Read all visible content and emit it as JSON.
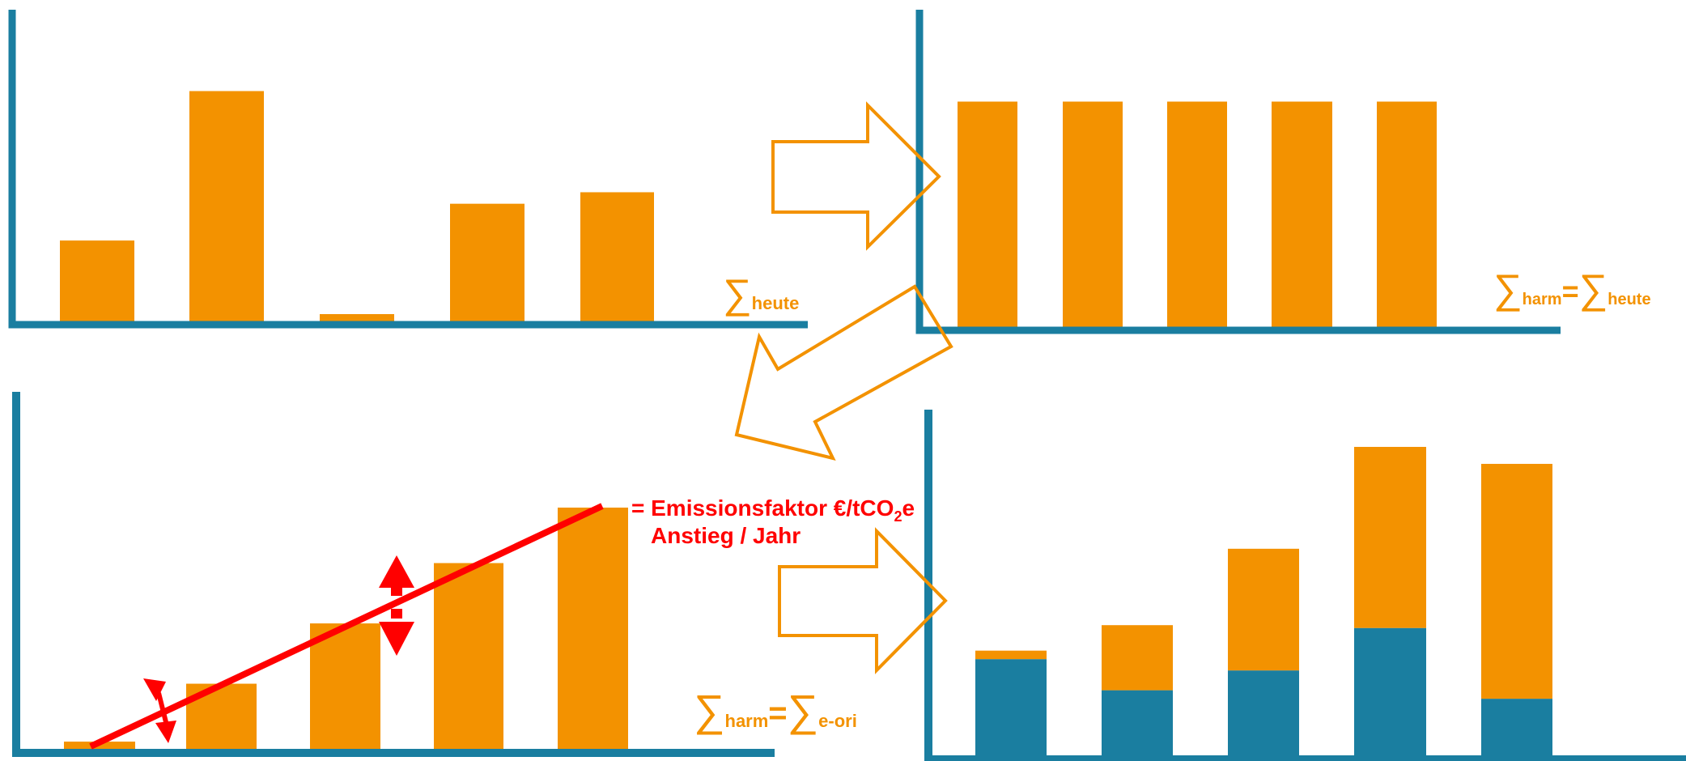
{
  "colors": {
    "axis": "#1a7ea0",
    "bar": "#f39200",
    "base": "#1a7ea0",
    "accent": "#ff0000",
    "arrow": "#f39200"
  },
  "chart_data": [
    {
      "type": "bar",
      "panel": "top-left",
      "values": [
        35,
        100,
        3,
        51,
        56
      ],
      "annotation": {
        "sigma": "∑",
        "sub": "heute"
      }
    },
    {
      "type": "bar",
      "panel": "top-right",
      "values": [
        49,
        49,
        49,
        49,
        49
      ],
      "annotation": {
        "sigma_left": "∑",
        "sub_left": "harm",
        "equals": "=",
        "sigma_right": "∑",
        "sub_right": "heute"
      }
    },
    {
      "type": "bar",
      "panel": "bottom-left",
      "values": [
        3,
        27,
        52,
        77,
        100
      ],
      "annotation": {
        "sigma_left": "∑",
        "sub_left": "harm",
        "equals": "=",
        "sigma_right": "∑",
        "sub_right": "e-ori"
      },
      "trend_label": {
        "line1_pre": "= Emissionsfaktor €/tCO",
        "line1_sub": "2",
        "line1_post": "e",
        "line2": "Anstieg / Jahr"
      }
    },
    {
      "type": "bar",
      "stacked": true,
      "panel": "bottom-right",
      "series": [
        {
          "values": [
            34,
            23,
            30,
            45,
            20
          ]
        },
        {
          "values": [
            3,
            23,
            43,
            64,
            83
          ]
        }
      ]
    }
  ]
}
